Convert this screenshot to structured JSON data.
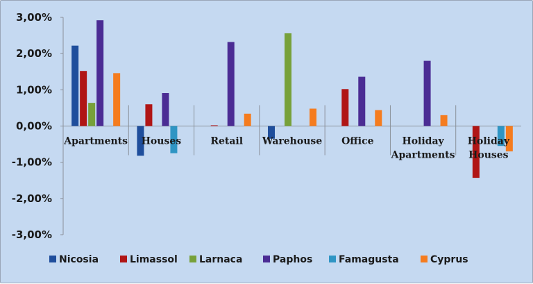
{
  "chart_data": {
    "type": "bar",
    "categories": [
      "Apartments",
      "Houses",
      "Retail",
      "Warehouse",
      "Office",
      "Holiday Apartments",
      "Holiday Houses"
    ],
    "series": [
      {
        "name": "Nicosia",
        "color": "#1f4e9c",
        "values": [
          2.22,
          -0.82,
          null,
          -0.35,
          null,
          null,
          null
        ]
      },
      {
        "name": "Limassol",
        "color": "#b01515",
        "values": [
          1.52,
          0.6,
          0.02,
          null,
          1.02,
          null,
          -1.43
        ]
      },
      {
        "name": "Larnaca",
        "color": "#77a13a",
        "values": [
          0.64,
          null,
          null,
          2.56,
          null,
          null,
          null
        ]
      },
      {
        "name": "Paphos",
        "color": "#4b2c94",
        "values": [
          2.92,
          0.91,
          2.32,
          null,
          1.36,
          1.8,
          null
        ]
      },
      {
        "name": "Famagusta",
        "color": "#2f95c4",
        "values": [
          null,
          -0.75,
          null,
          null,
          null,
          null,
          -0.55
        ]
      },
      {
        "name": "Cyprus",
        "color": "#f57c1f",
        "values": [
          1.46,
          null,
          0.34,
          0.48,
          0.44,
          0.3,
          -0.7
        ]
      }
    ],
    "y_ticks": [
      "3,00%",
      "2,00%",
      "1,00%",
      "0,00%",
      "-1,00%",
      "-2,00%",
      "-3,00%"
    ],
    "ylim": [
      -3,
      3
    ],
    "grid": false,
    "legend_position": "bottom"
  }
}
